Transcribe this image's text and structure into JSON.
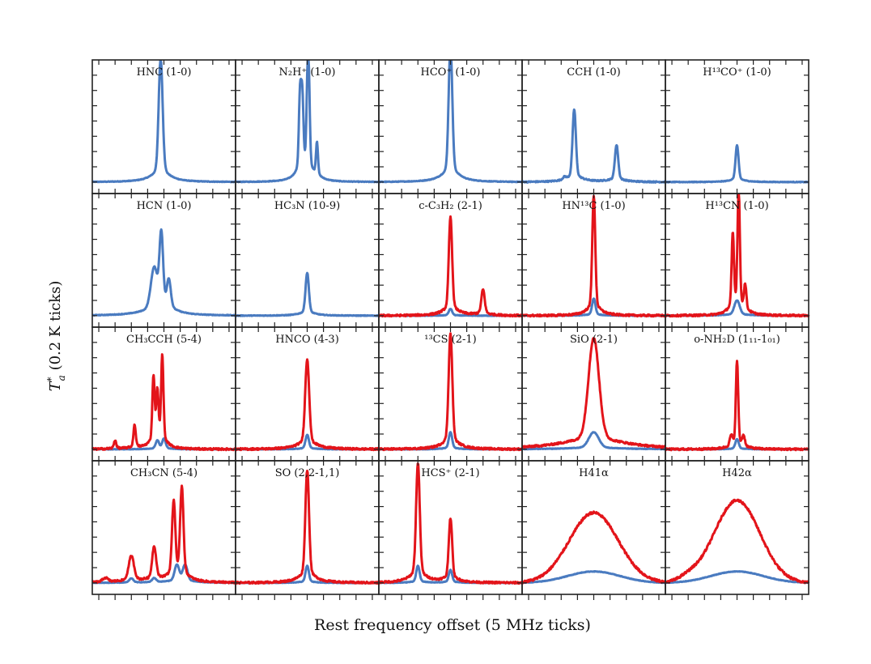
{
  "chart_data": {
    "type": "line",
    "xlabel": "Rest frequency offset (5 MHz ticks)",
    "ylabel": "T*a (0.2 K ticks)",
    "ylabel_sym": "T",
    "ylabel_sup": "*",
    "ylabel_sub": "a",
    "ylabel_rest": " (0.2 K ticks)",
    "x_range": [
      -22,
      22
    ],
    "y_range": [
      -0.15,
      1.6
    ],
    "colors": {
      "blue": "#4a7bc0",
      "red": "#e3141a"
    },
    "grid": false,
    "panels": [
      {
        "title": "HNC (1-0)",
        "blue": {
          "noise": 0.004,
          "components": [
            [
              -1,
              1.45,
              0.6,
              0.25
            ]
          ]
        }
      },
      {
        "title": "N₂H⁺ (1-0)",
        "blue": {
          "noise": 0.004,
          "components": [
            [
              -2.2,
              0.9,
              0.35,
              0.2
            ],
            [
              -1.5,
              0.85,
              0.35,
              0.2
            ],
            [
              0.3,
              1.5,
              0.4,
              0.2
            ],
            [
              3,
              0.4,
              0.3,
              0.2
            ]
          ]
        }
      },
      {
        "title": "HCO⁺ (1-0)",
        "blue": {
          "noise": 0.004,
          "components": [
            [
              0,
              1.6,
              0.55,
              0.3
            ]
          ]
        }
      },
      {
        "title": "CCH (1-0)",
        "blue": {
          "noise": 0.008,
          "components": [
            [
              -9,
              0.03,
              0.5,
              0
            ],
            [
              -6,
              0.85,
              0.5,
              0.25
            ],
            [
              7,
              0.43,
              0.5,
              0.25
            ]
          ]
        }
      },
      {
        "title": "H¹³CO⁺ (1-0)",
        "blue": {
          "noise": 0.004,
          "components": [
            [
              0,
              0.43,
              0.45,
              0.2
            ]
          ]
        }
      },
      {
        "title": "HCN (1-0)",
        "blue": {
          "noise": 0.004,
          "components": [
            [
              -3,
              0.5,
              1,
              0.3
            ],
            [
              -0.8,
              0.9,
              0.55,
              0.3
            ],
            [
              1.5,
              0.35,
              0.6,
              0.3
            ]
          ]
        }
      },
      {
        "title": "HC₃N (10-9)",
        "blue": {
          "noise": 0.004,
          "components": [
            [
              0,
              0.5,
              0.5,
              0.2
            ]
          ]
        }
      },
      {
        "title": "c-C₃H₂ (2-1)",
        "blue": {
          "noise": 0.003,
          "components": [
            [
              0,
              0.08,
              0.5,
              0.2
            ]
          ]
        },
        "red": {
          "noise": 0.012,
          "components": [
            [
              0,
              1.15,
              0.5,
              0.2
            ],
            [
              10,
              0.3,
              0.5,
              0.2
            ]
          ]
        }
      },
      {
        "title": "HN¹³C (1-0)",
        "blue": {
          "noise": 0.003,
          "components": [
            [
              0,
              0.2,
              0.5,
              0.2
            ]
          ]
        },
        "red": {
          "noise": 0.012,
          "components": [
            [
              0,
              1.4,
              0.45,
              0.2
            ]
          ]
        }
      },
      {
        "title": "H¹³CN (1-0)",
        "blue": {
          "noise": 0.003,
          "components": [
            [
              0,
              0.18,
              0.8,
              0.3
            ]
          ]
        },
        "red": {
          "noise": 0.012,
          "components": [
            [
              -1.3,
              0.9,
              0.35,
              0.2
            ],
            [
              0.5,
              1.45,
              0.35,
              0.2
            ],
            [
              2.5,
              0.3,
              0.35,
              0.2
            ]
          ]
        }
      },
      {
        "title": "CH₃CCH (5-4)",
        "blue": {
          "noise": 0.003,
          "components": [
            [
              -2,
              0.1,
              0.5,
              0.2
            ],
            [
              0,
              0.12,
              0.5,
              0.2
            ]
          ]
        },
        "red": {
          "noise": 0.012,
          "components": [
            [
              -15,
              0.1,
              0.35,
              0.2
            ],
            [
              -9,
              0.27,
              0.35,
              0.2
            ],
            [
              -3.2,
              0.8,
              0.35,
              0.2
            ],
            [
              -2,
              0.6,
              0.35,
              0.2
            ],
            [
              -0.5,
              1.05,
              0.35,
              0.2
            ]
          ]
        }
      },
      {
        "title": "HNCO (4-3)",
        "blue": {
          "noise": 0.003,
          "components": [
            [
              0,
              0.17,
              0.5,
              0.2
            ]
          ]
        },
        "red": {
          "noise": 0.012,
          "components": [
            [
              0,
              1.05,
              0.6,
              0.3
            ]
          ]
        }
      },
      {
        "title": "¹³CS (2-1)",
        "blue": {
          "noise": 0.003,
          "components": [
            [
              0,
              0.2,
              0.5,
              0.2
            ]
          ]
        },
        "red": {
          "noise": 0.012,
          "components": [
            [
              0,
              1.35,
              0.55,
              0.2
            ]
          ]
        }
      },
      {
        "title": "SiO (2-1)",
        "blue": {
          "noise": 0.003,
          "components": [
            [
              0,
              0.2,
              1.5,
              0.5
            ]
          ]
        },
        "red": {
          "noise": 0.012,
          "components": [
            [
              0,
              1.3,
              1.6,
              0.7
            ]
          ]
        }
      },
      {
        "title": "o-NH₂D (1₁₁-1₀₁)",
        "blue": {
          "noise": 0.003,
          "components": [
            [
              0,
              0.12,
              0.5,
              0.2
            ]
          ]
        },
        "red": {
          "noise": 0.012,
          "components": [
            [
              0,
              1.02,
              0.35,
              0.2
            ],
            [
              -1.8,
              0.12,
              0.4,
              0.2
            ],
            [
              2,
              0.12,
              0.4,
              0.2
            ]
          ]
        }
      },
      {
        "title": "CH₃CN (5-4)",
        "blue": {
          "noise": 0.003,
          "components": [
            [
              -10,
              0.05,
              0.6,
              0.3
            ],
            [
              -3,
              0.05,
              0.6,
              0.3
            ],
            [
              4,
              0.2,
              0.7,
              0.3
            ],
            [
              6.5,
              0.2,
              0.7,
              0.3
            ]
          ]
        },
        "red": {
          "noise": 0.012,
          "components": [
            [
              -18,
              0.05,
              0.8,
              0.3
            ],
            [
              -10,
              0.3,
              0.8,
              0.3
            ],
            [
              -3,
              0.4,
              0.6,
              0.3
            ],
            [
              3,
              0.9,
              0.5,
              0.2
            ],
            [
              5.5,
              1.08,
              0.5,
              0.2
            ]
          ]
        }
      },
      {
        "title": "SO (2,2-1,1)",
        "blue": {
          "noise": 0.003,
          "components": [
            [
              0,
              0.2,
              0.5,
              0.2
            ]
          ]
        },
        "red": {
          "noise": 0.012,
          "components": [
            [
              0,
              1.32,
              0.55,
              0.25
            ]
          ]
        }
      },
      {
        "title": "HCS⁺ (2-1)",
        "blue": {
          "noise": 0.003,
          "components": [
            [
              -10,
              0.2,
              0.5,
              0.2
            ],
            [
              0,
              0.15,
              0.5,
              0.2
            ]
          ]
        },
        "red": {
          "noise": 0.012,
          "components": [
            [
              -10,
              1.4,
              0.55,
              0.2
            ],
            [
              0,
              0.75,
              0.5,
              0.2
            ]
          ]
        }
      },
      {
        "title": "H41α",
        "blue": {
          "noise": 0.003,
          "components": [
            [
              0,
              0.15,
              8,
              0
            ]
          ]
        },
        "red": {
          "noise": 0.015,
          "components": [
            [
              0,
              0.92,
              7.5,
              0
            ]
          ]
        }
      },
      {
        "title": "H42α",
        "blue": {
          "noise": 0.003,
          "components": [
            [
              0,
              0.15,
              8,
              0
            ]
          ]
        },
        "red": {
          "noise": 0.015,
          "components": [
            [
              -15,
              0.05,
              3,
              0
            ],
            [
              0,
              1.08,
              7,
              0
            ]
          ]
        }
      }
    ]
  }
}
